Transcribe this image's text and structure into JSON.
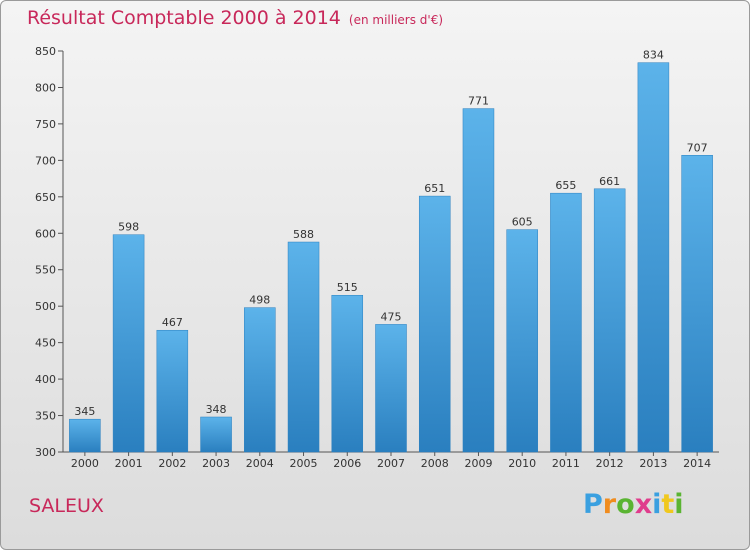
{
  "chart_data": {
    "type": "bar",
    "title": "Résultat Comptable 2000 à 2014",
    "subtitle": "(en milliers d'€)",
    "categories": [
      "2000",
      "2001",
      "2002",
      "2003",
      "2004",
      "2005",
      "2006",
      "2007",
      "2008",
      "2009",
      "2010",
      "2011",
      "2012",
      "2013",
      "2014"
    ],
    "values": [
      345,
      598,
      467,
      348,
      498,
      588,
      515,
      475,
      651,
      771,
      605,
      655,
      661,
      834,
      707
    ],
    "ylim": [
      300,
      850
    ],
    "yticks": [
      300,
      350,
      400,
      450,
      500,
      550,
      600,
      650,
      700,
      750,
      800,
      850
    ],
    "xlabel": "",
    "ylabel": "",
    "grid": false,
    "bar_color": "#4ea6e0"
  },
  "commune": "SALEUX",
  "logo": {
    "letters": [
      "P",
      "r",
      "o",
      "x",
      "i",
      "t",
      "i"
    ],
    "colors": [
      "#3aa0e0",
      "#f08c1e",
      "#5ab432",
      "#e03c8c",
      "#3aa0e0",
      "#f0c81e",
      "#5ab432"
    ]
  },
  "colors": {
    "title": "#c8285a",
    "bar_top": "#5cb3ea",
    "bar_bottom": "#2a7fbf"
  }
}
